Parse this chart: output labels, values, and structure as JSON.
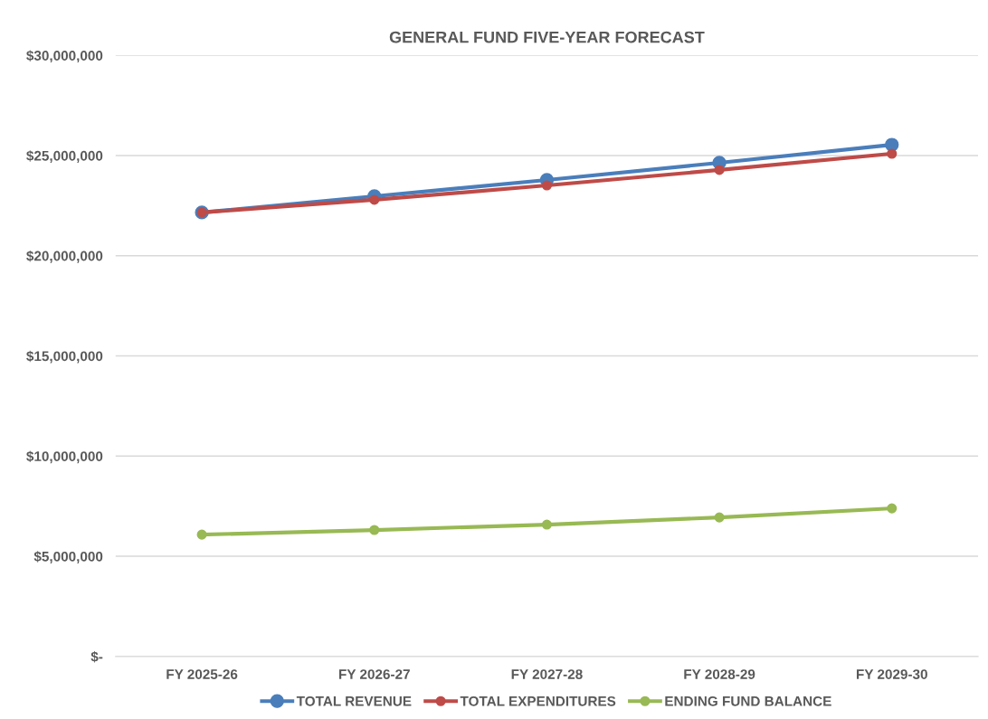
{
  "chart_data": {
    "type": "line",
    "title": "GENERAL FUND FIVE-YEAR FORECAST",
    "categories": [
      "FY 2025-26",
      "FY 2026-27",
      "FY 2027-28",
      "FY 2028-29",
      "FY 2029-30"
    ],
    "series": [
      {
        "name": "TOTAL REVENUE",
        "color": "#4a7ebb",
        "values": [
          22160000,
          22970000,
          23780000,
          24640000,
          25540000
        ]
      },
      {
        "name": "TOTAL EXPENDITURES",
        "color": "#be4b48",
        "values": [
          22160000,
          22790000,
          23510000,
          24280000,
          25090000
        ]
      },
      {
        "name": "ENDING FUND BALANCE",
        "color": "#98b954",
        "values": [
          6080000,
          6310000,
          6580000,
          6940000,
          7390000
        ]
      }
    ],
    "ylim": [
      0,
      30000000
    ],
    "yticks": [
      {
        "value": 0,
        "label": "$-"
      },
      {
        "value": 5000000,
        "label": "$5,000,000"
      },
      {
        "value": 10000000,
        "label": "$10,000,000"
      },
      {
        "value": 15000000,
        "label": "$15,000,000"
      },
      {
        "value": 20000000,
        "label": "$20,000,000"
      },
      {
        "value": 25000000,
        "label": "$25,000,000"
      },
      {
        "value": 30000000,
        "label": "$30,000,000"
      }
    ],
    "grid": "y",
    "legend": "bottom",
    "marker": "circle",
    "line_style": "solid"
  }
}
